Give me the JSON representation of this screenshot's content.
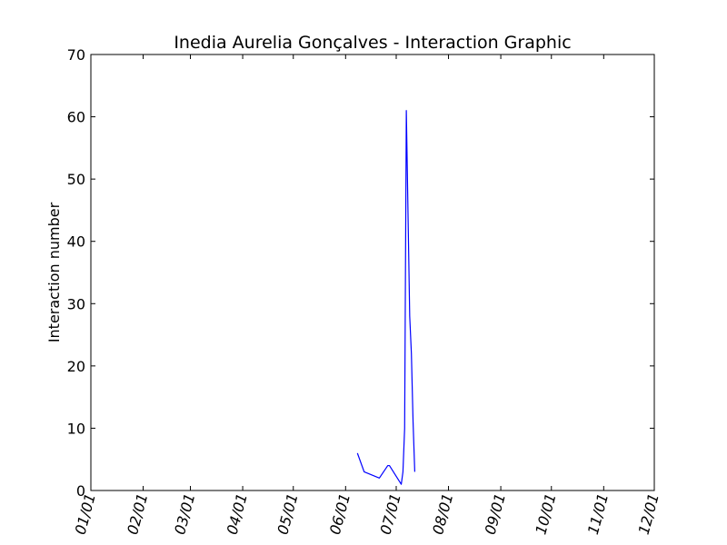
{
  "chart_data": {
    "type": "line",
    "title": "Inedia Aurelia Gonçalves - Interaction Graphic",
    "xlabel": "",
    "ylabel": "Interaction number",
    "x_axis_type": "date",
    "xlim": [
      "2015-01-01",
      "2015-12-01"
    ],
    "ylim": [
      0,
      70
    ],
    "yticks": [
      0,
      10,
      20,
      30,
      40,
      50,
      60,
      70
    ],
    "xtick_labels": [
      "01/01",
      "02/01",
      "03/01",
      "04/01",
      "05/01",
      "06/01",
      "07/01",
      "08/01",
      "09/01",
      "10/01",
      "11/01",
      "12/01"
    ],
    "xtick_dates": [
      "2015-01-01",
      "2015-02-01",
      "2015-03-01",
      "2015-04-01",
      "2015-05-01",
      "2015-06-01",
      "2015-07-01",
      "2015-08-01",
      "2015-09-01",
      "2015-10-01",
      "2015-11-01",
      "2015-12-01"
    ],
    "grid": false,
    "series": [
      {
        "color": "#0000ff",
        "points": [
          {
            "x": "2015-06-08",
            "y": 6
          },
          {
            "x": "2015-06-12",
            "y": 3
          },
          {
            "x": "2015-06-21",
            "y": 2
          },
          {
            "x": "2015-06-26",
            "y": 4
          },
          {
            "x": "2015-06-27",
            "y": 4
          },
          {
            "x": "2015-07-04",
            "y": 1
          },
          {
            "x": "2015-07-05",
            "y": 3
          },
          {
            "x": "2015-07-06",
            "y": 10
          },
          {
            "x": "2015-07-07",
            "y": 61
          },
          {
            "x": "2015-07-09",
            "y": 28
          },
          {
            "x": "2015-07-10",
            "y": 22
          },
          {
            "x": "2015-07-11",
            "y": 11
          },
          {
            "x": "2015-07-12",
            "y": 3
          }
        ]
      }
    ]
  }
}
